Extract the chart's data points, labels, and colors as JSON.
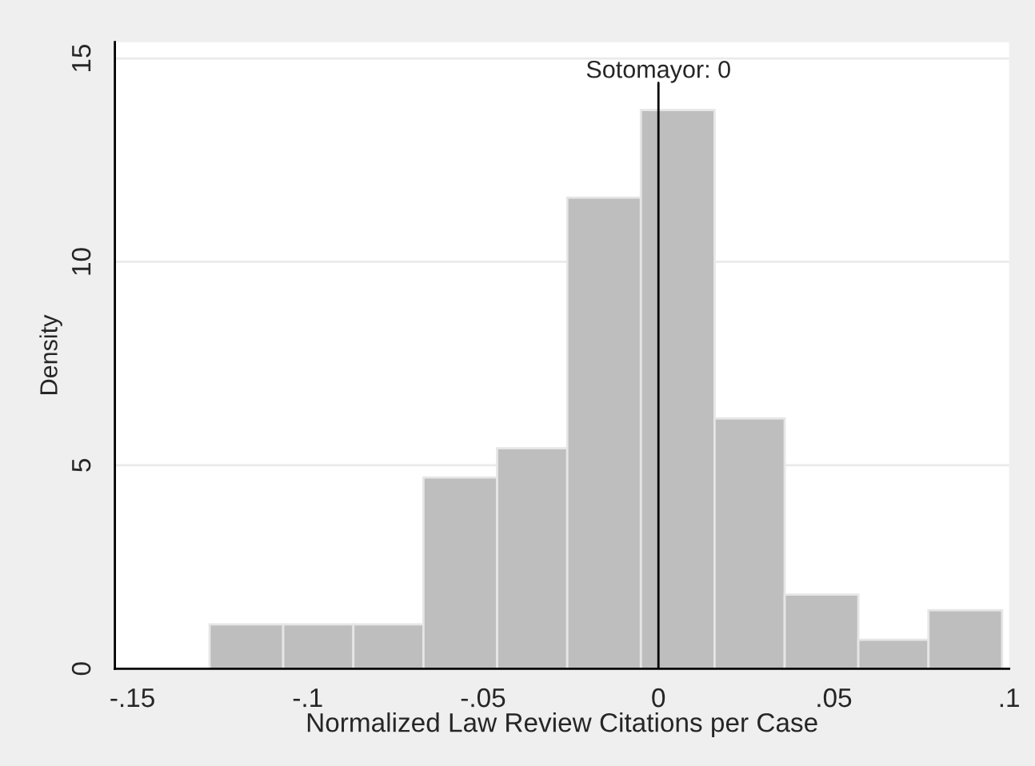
{
  "chart_data": {
    "type": "histogram",
    "xlabel": "Normalized Law Review Citations per Case",
    "ylabel": "Density",
    "bins": [
      -0.128,
      -0.107,
      -0.087,
      -0.067,
      -0.046,
      -0.026,
      -0.005,
      0.016,
      0.036,
      0.057,
      0.077,
      0.098
    ],
    "values": [
      1.09,
      1.09,
      1.09,
      4.7,
      5.42,
      11.58,
      13.73,
      6.15,
      1.82,
      0.71,
      1.44
    ],
    "color": "#bebebe",
    "xlim": [
      -0.155,
      0.1
    ],
    "xticks": [
      {
        "value": -0.15,
        "label": "-.15"
      },
      {
        "value": -0.1,
        "label": "-.1"
      },
      {
        "value": -0.05,
        "label": "-.05"
      },
      0,
      {
        "value": 0.05,
        "label": ".05"
      },
      {
        "value": 0.1,
        "label": ".1"
      }
    ],
    "ylim": [
      0,
      15.4
    ],
    "yticks": [
      0,
      5,
      10,
      15
    ],
    "grid": "y",
    "ref_lines": [
      {
        "axis": "x",
        "value": 0,
        "label": "Sotomayor: 0",
        "color": "#000000"
      }
    ]
  }
}
